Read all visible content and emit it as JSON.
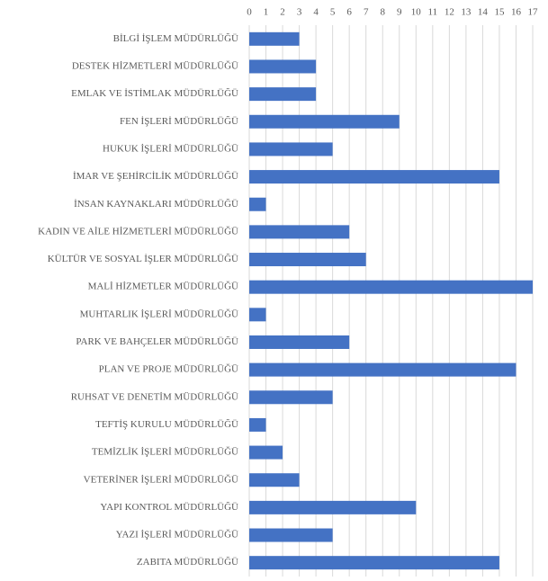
{
  "chart_data": {
    "type": "barh",
    "color": "#4472c4",
    "grid": true,
    "categories": [
      "BİLGİ İŞLEM MÜDÜRLÜĞÜ",
      "DESTEK HİZMETLERİ MÜDÜRLÜĞÜ",
      "EMLAK VE İSTİMLAK MÜDÜRLÜĞÜ",
      "FEN İŞLERİ MÜDÜRLÜĞÜ",
      "HUKUK İŞLERİ MÜDÜRLÜĞÜ",
      "İMAR VE ŞEHİRCİLİK MÜDÜRLÜĞÜ",
      "İNSAN KAYNAKLARI MÜDÜRLÜĞÜ",
      "KADIN VE AİLE HİZMETLERİ MÜDÜRLÜĞÜ",
      "KÜLTÜR VE SOSYAL İŞLER MÜDÜRLÜĞÜ",
      "MALİ HİZMETLER MÜDÜRLÜĞÜ",
      "MUHTARLIK İŞLERİ MÜDÜRLÜĞÜ",
      "PARK VE BAHÇELER MÜDÜRLÜĞÜ",
      "PLAN VE PROJE MÜDÜRLÜĞÜ",
      "RUHSAT VE DENETİM MÜDÜRLÜĞÜ",
      "TEFTİŞ KURULU MÜDÜRLÜĞÜ",
      "TEMİZLİK İŞLERİ MÜDÜRLÜĞÜ",
      "VETERİNER İŞLERİ MÜDÜRLÜĞÜ",
      "YAPI KONTROL MÜDÜRLÜĞÜ",
      "YAZI İŞLERİ MÜDÜRLÜĞÜ",
      "ZABITA MÜDÜRLÜĞÜ"
    ],
    "values": [
      3,
      4,
      4,
      9,
      5,
      15,
      1,
      6,
      7,
      17,
      1,
      6,
      16,
      5,
      1,
      2,
      3,
      10,
      5,
      15
    ],
    "xlim": [
      0,
      17
    ],
    "xticks": [
      0,
      1,
      2,
      3,
      4,
      5,
      6,
      7,
      8,
      9,
      10,
      11,
      12,
      13,
      14,
      15,
      16,
      17
    ]
  }
}
